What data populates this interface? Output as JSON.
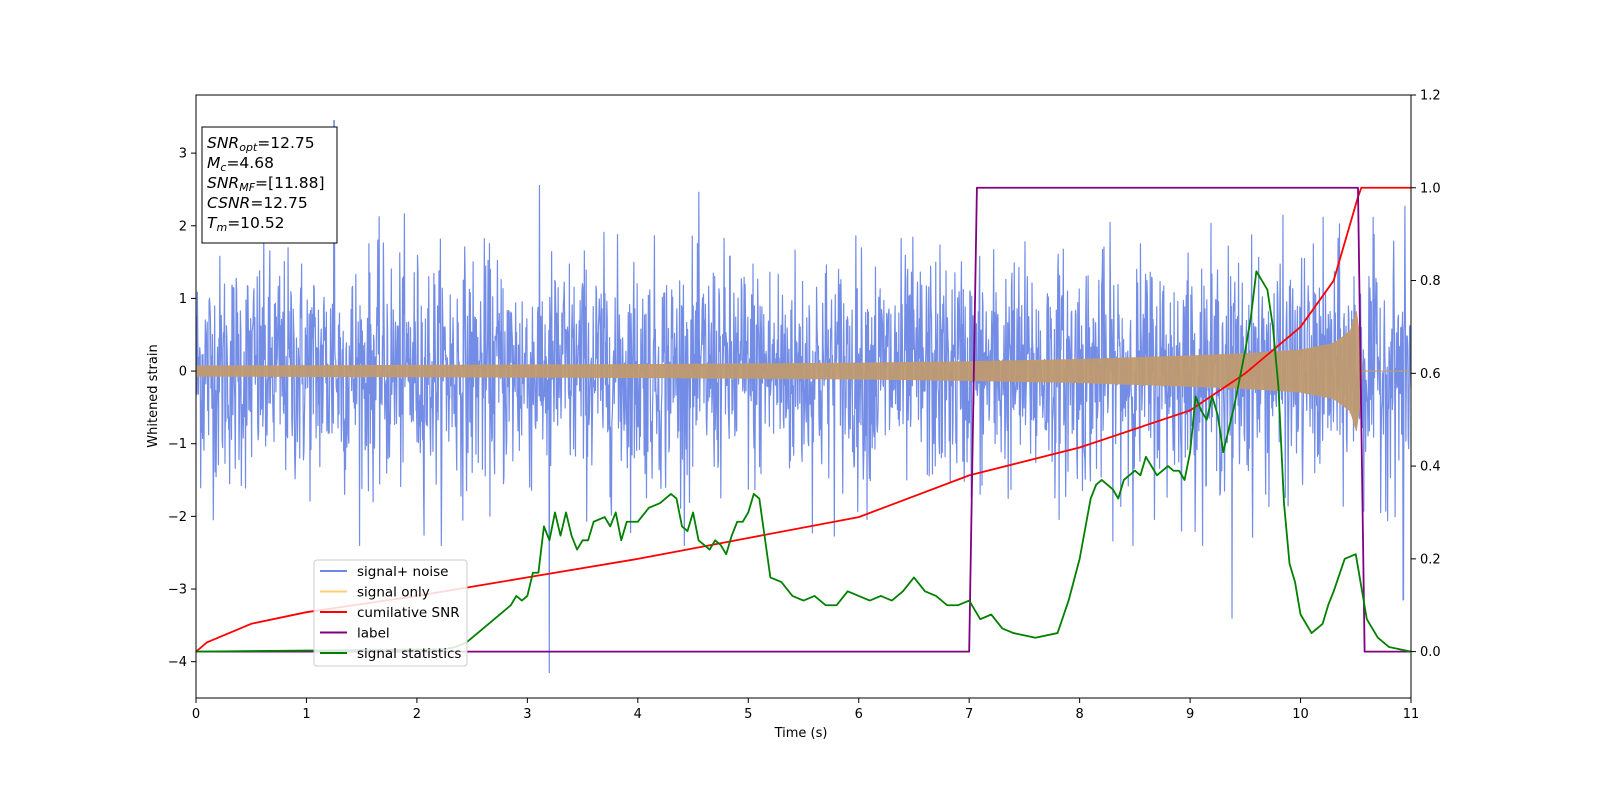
{
  "chart_data": {
    "type": "line",
    "title": "",
    "xlabel": "Time (s)",
    "ylabel": "Whitened strain",
    "y2label": "",
    "xlim": [
      0,
      11
    ],
    "ylim": [
      -4.5,
      3.8
    ],
    "y2lim": [
      -0.1,
      1.2
    ],
    "xticks": [
      0,
      1,
      2,
      3,
      4,
      5,
      6,
      7,
      8,
      9,
      10,
      11
    ],
    "yticks": [
      -4,
      -3,
      -2,
      -1,
      0,
      1,
      2,
      3
    ],
    "y2ticks": [
      0.0,
      0.2,
      0.4,
      0.6,
      0.8,
      1.0,
      1.2
    ],
    "grid": false,
    "legend_position": "lower-left",
    "info_box": [
      {
        "base": "SNR",
        "sub": "opt",
        "value": "=12.75"
      },
      {
        "base": "M",
        "sub": "c",
        "value": "=4.68"
      },
      {
        "base": "SNR",
        "sub": "MF",
        "value": "=[11.88]"
      },
      {
        "base": "CSNR",
        "sub": "",
        "value": "=12.75"
      },
      {
        "base": "T",
        "sub": "m",
        "value": "=10.52"
      }
    ],
    "series": [
      {
        "name": "signal+ noise",
        "color": "#6c87e6",
        "axis": "left",
        "kind": "noise",
        "noise_sigma": 0.78,
        "typical_max": 3.3,
        "typical_min": -2.4,
        "extremes": [
          [
            1.25,
            3.45
          ],
          [
            3.2,
            -4.15
          ],
          [
            9.38,
            -3.4
          ],
          [
            10.93,
            -3.15
          ]
        ]
      },
      {
        "name": "signal only",
        "color": "#c09a70",
        "axis": "left",
        "kind": "chirp",
        "envelope_t": [
          0,
          2,
          4,
          6,
          7,
          8,
          9,
          9.5,
          10,
          10.3,
          10.45,
          10.52,
          10.55,
          11
        ],
        "envelope_a": [
          0.07,
          0.08,
          0.09,
          0.11,
          0.13,
          0.16,
          0.21,
          0.24,
          0.29,
          0.38,
          0.55,
          0.9,
          0,
          0
        ]
      },
      {
        "name": "cumilative SNR",
        "color": "#ff0000",
        "axis": "right",
        "x": [
          0,
          0.1,
          0.5,
          1,
          2,
          3,
          4,
          5,
          6,
          7,
          8,
          9,
          9.5,
          10,
          10.3,
          10.52,
          10.55,
          11
        ],
        "y": [
          0.0,
          0.02,
          0.06,
          0.085,
          0.12,
          0.16,
          0.2,
          0.245,
          0.29,
          0.38,
          0.44,
          0.52,
          0.6,
          0.7,
          0.8,
          0.98,
          1.0,
          1.0
        ]
      },
      {
        "name": "label",
        "color": "#800080",
        "axis": "right",
        "x": [
          0,
          7.0,
          7.07,
          10.52,
          10.58,
          11
        ],
        "y": [
          0,
          0,
          1,
          1,
          0,
          0
        ]
      },
      {
        "name": "signal statistics",
        "color": "#008000",
        "axis": "right",
        "x": [
          0,
          2.25,
          2.35,
          2.45,
          2.55,
          2.65,
          2.75,
          2.85,
          2.9,
          2.95,
          3.0,
          3.05,
          3.1,
          3.15,
          3.2,
          3.25,
          3.3,
          3.35,
          3.4,
          3.45,
          3.5,
          3.55,
          3.6,
          3.7,
          3.75,
          3.8,
          3.85,
          3.9,
          4.0,
          4.1,
          4.2,
          4.3,
          4.35,
          4.4,
          4.45,
          4.5,
          4.55,
          4.6,
          4.65,
          4.7,
          4.75,
          4.8,
          4.85,
          4.9,
          4.95,
          5.0,
          5.05,
          5.1,
          5.2,
          5.3,
          5.4,
          5.5,
          5.6,
          5.7,
          5.8,
          5.9,
          6.0,
          6.1,
          6.2,
          6.3,
          6.4,
          6.5,
          6.6,
          6.7,
          6.8,
          6.9,
          7.0,
          7.1,
          7.2,
          7.3,
          7.4,
          7.5,
          7.6,
          7.8,
          7.9,
          8.0,
          8.1,
          8.15,
          8.2,
          8.3,
          8.35,
          8.4,
          8.5,
          8.55,
          8.6,
          8.7,
          8.8,
          8.85,
          8.9,
          8.95,
          9.0,
          9.05,
          9.1,
          9.15,
          9.2,
          9.25,
          9.3,
          9.4,
          9.5,
          9.55,
          9.6,
          9.7,
          9.75,
          9.8,
          9.85,
          9.9,
          9.95,
          10.0,
          10.1,
          10.2,
          10.25,
          10.3,
          10.4,
          10.5,
          10.6,
          10.7,
          10.8,
          11
        ],
        "y": [
          0,
          0.005,
          0.01,
          0.02,
          0.04,
          0.06,
          0.08,
          0.1,
          0.12,
          0.11,
          0.12,
          0.17,
          0.17,
          0.27,
          0.24,
          0.3,
          0.25,
          0.3,
          0.25,
          0.22,
          0.24,
          0.24,
          0.28,
          0.29,
          0.27,
          0.3,
          0.24,
          0.28,
          0.28,
          0.31,
          0.32,
          0.34,
          0.33,
          0.27,
          0.26,
          0.3,
          0.24,
          0.23,
          0.22,
          0.24,
          0.23,
          0.21,
          0.25,
          0.28,
          0.28,
          0.3,
          0.34,
          0.33,
          0.16,
          0.15,
          0.12,
          0.11,
          0.12,
          0.1,
          0.1,
          0.13,
          0.12,
          0.11,
          0.12,
          0.11,
          0.13,
          0.16,
          0.13,
          0.12,
          0.1,
          0.1,
          0.11,
          0.07,
          0.08,
          0.05,
          0.04,
          0.035,
          0.03,
          0.04,
          0.11,
          0.2,
          0.33,
          0.36,
          0.37,
          0.35,
          0.33,
          0.37,
          0.39,
          0.38,
          0.42,
          0.38,
          0.4,
          0.39,
          0.39,
          0.37,
          0.43,
          0.55,
          0.52,
          0.5,
          0.55,
          0.51,
          0.43,
          0.53,
          0.65,
          0.72,
          0.82,
          0.78,
          0.7,
          0.57,
          0.32,
          0.19,
          0.15,
          0.08,
          0.04,
          0.06,
          0.1,
          0.13,
          0.2,
          0.21,
          0.07,
          0.03,
          0.01,
          0
        ]
      }
    ]
  }
}
